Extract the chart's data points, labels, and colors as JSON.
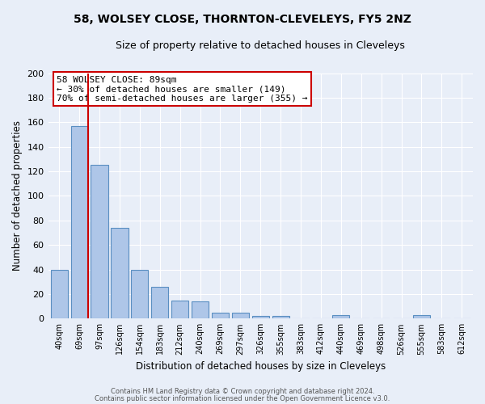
{
  "title": "58, WOLSEY CLOSE, THORNTON-CLEVELEYS, FY5 2NZ",
  "subtitle": "Size of property relative to detached houses in Cleveleys",
  "xlabel": "Distribution of detached houses by size in Cleveleys",
  "ylabel": "Number of detached properties",
  "bar_labels": [
    "40sqm",
    "69sqm",
    "97sqm",
    "126sqm",
    "154sqm",
    "183sqm",
    "212sqm",
    "240sqm",
    "269sqm",
    "297sqm",
    "326sqm",
    "355sqm",
    "383sqm",
    "412sqm",
    "440sqm",
    "469sqm",
    "498sqm",
    "526sqm",
    "555sqm",
    "583sqm",
    "612sqm"
  ],
  "bar_values": [
    40,
    157,
    125,
    74,
    40,
    26,
    15,
    14,
    5,
    5,
    2,
    2,
    0,
    0,
    3,
    0,
    0,
    0,
    3,
    0,
    0
  ],
  "bar_color": "#aec6e8",
  "bar_edge_color": "#5a8fc2",
  "background_color": "#e8eef8",
  "grid_color": "#ffffff",
  "vline_color": "#cc0000",
  "annotation_title": "58 WOLSEY CLOSE: 89sqm",
  "annotation_line1": "← 30% of detached houses are smaller (149)",
  "annotation_line2": "70% of semi-detached houses are larger (355) →",
  "annotation_box_color": "#ffffff",
  "annotation_box_edge": "#cc0000",
  "ylim": [
    0,
    200
  ],
  "yticks": [
    0,
    20,
    40,
    60,
    80,
    100,
    120,
    140,
    160,
    180,
    200
  ],
  "footer1": "Contains HM Land Registry data © Crown copyright and database right 2024.",
  "footer2": "Contains public sector information licensed under the Open Government Licence v3.0."
}
